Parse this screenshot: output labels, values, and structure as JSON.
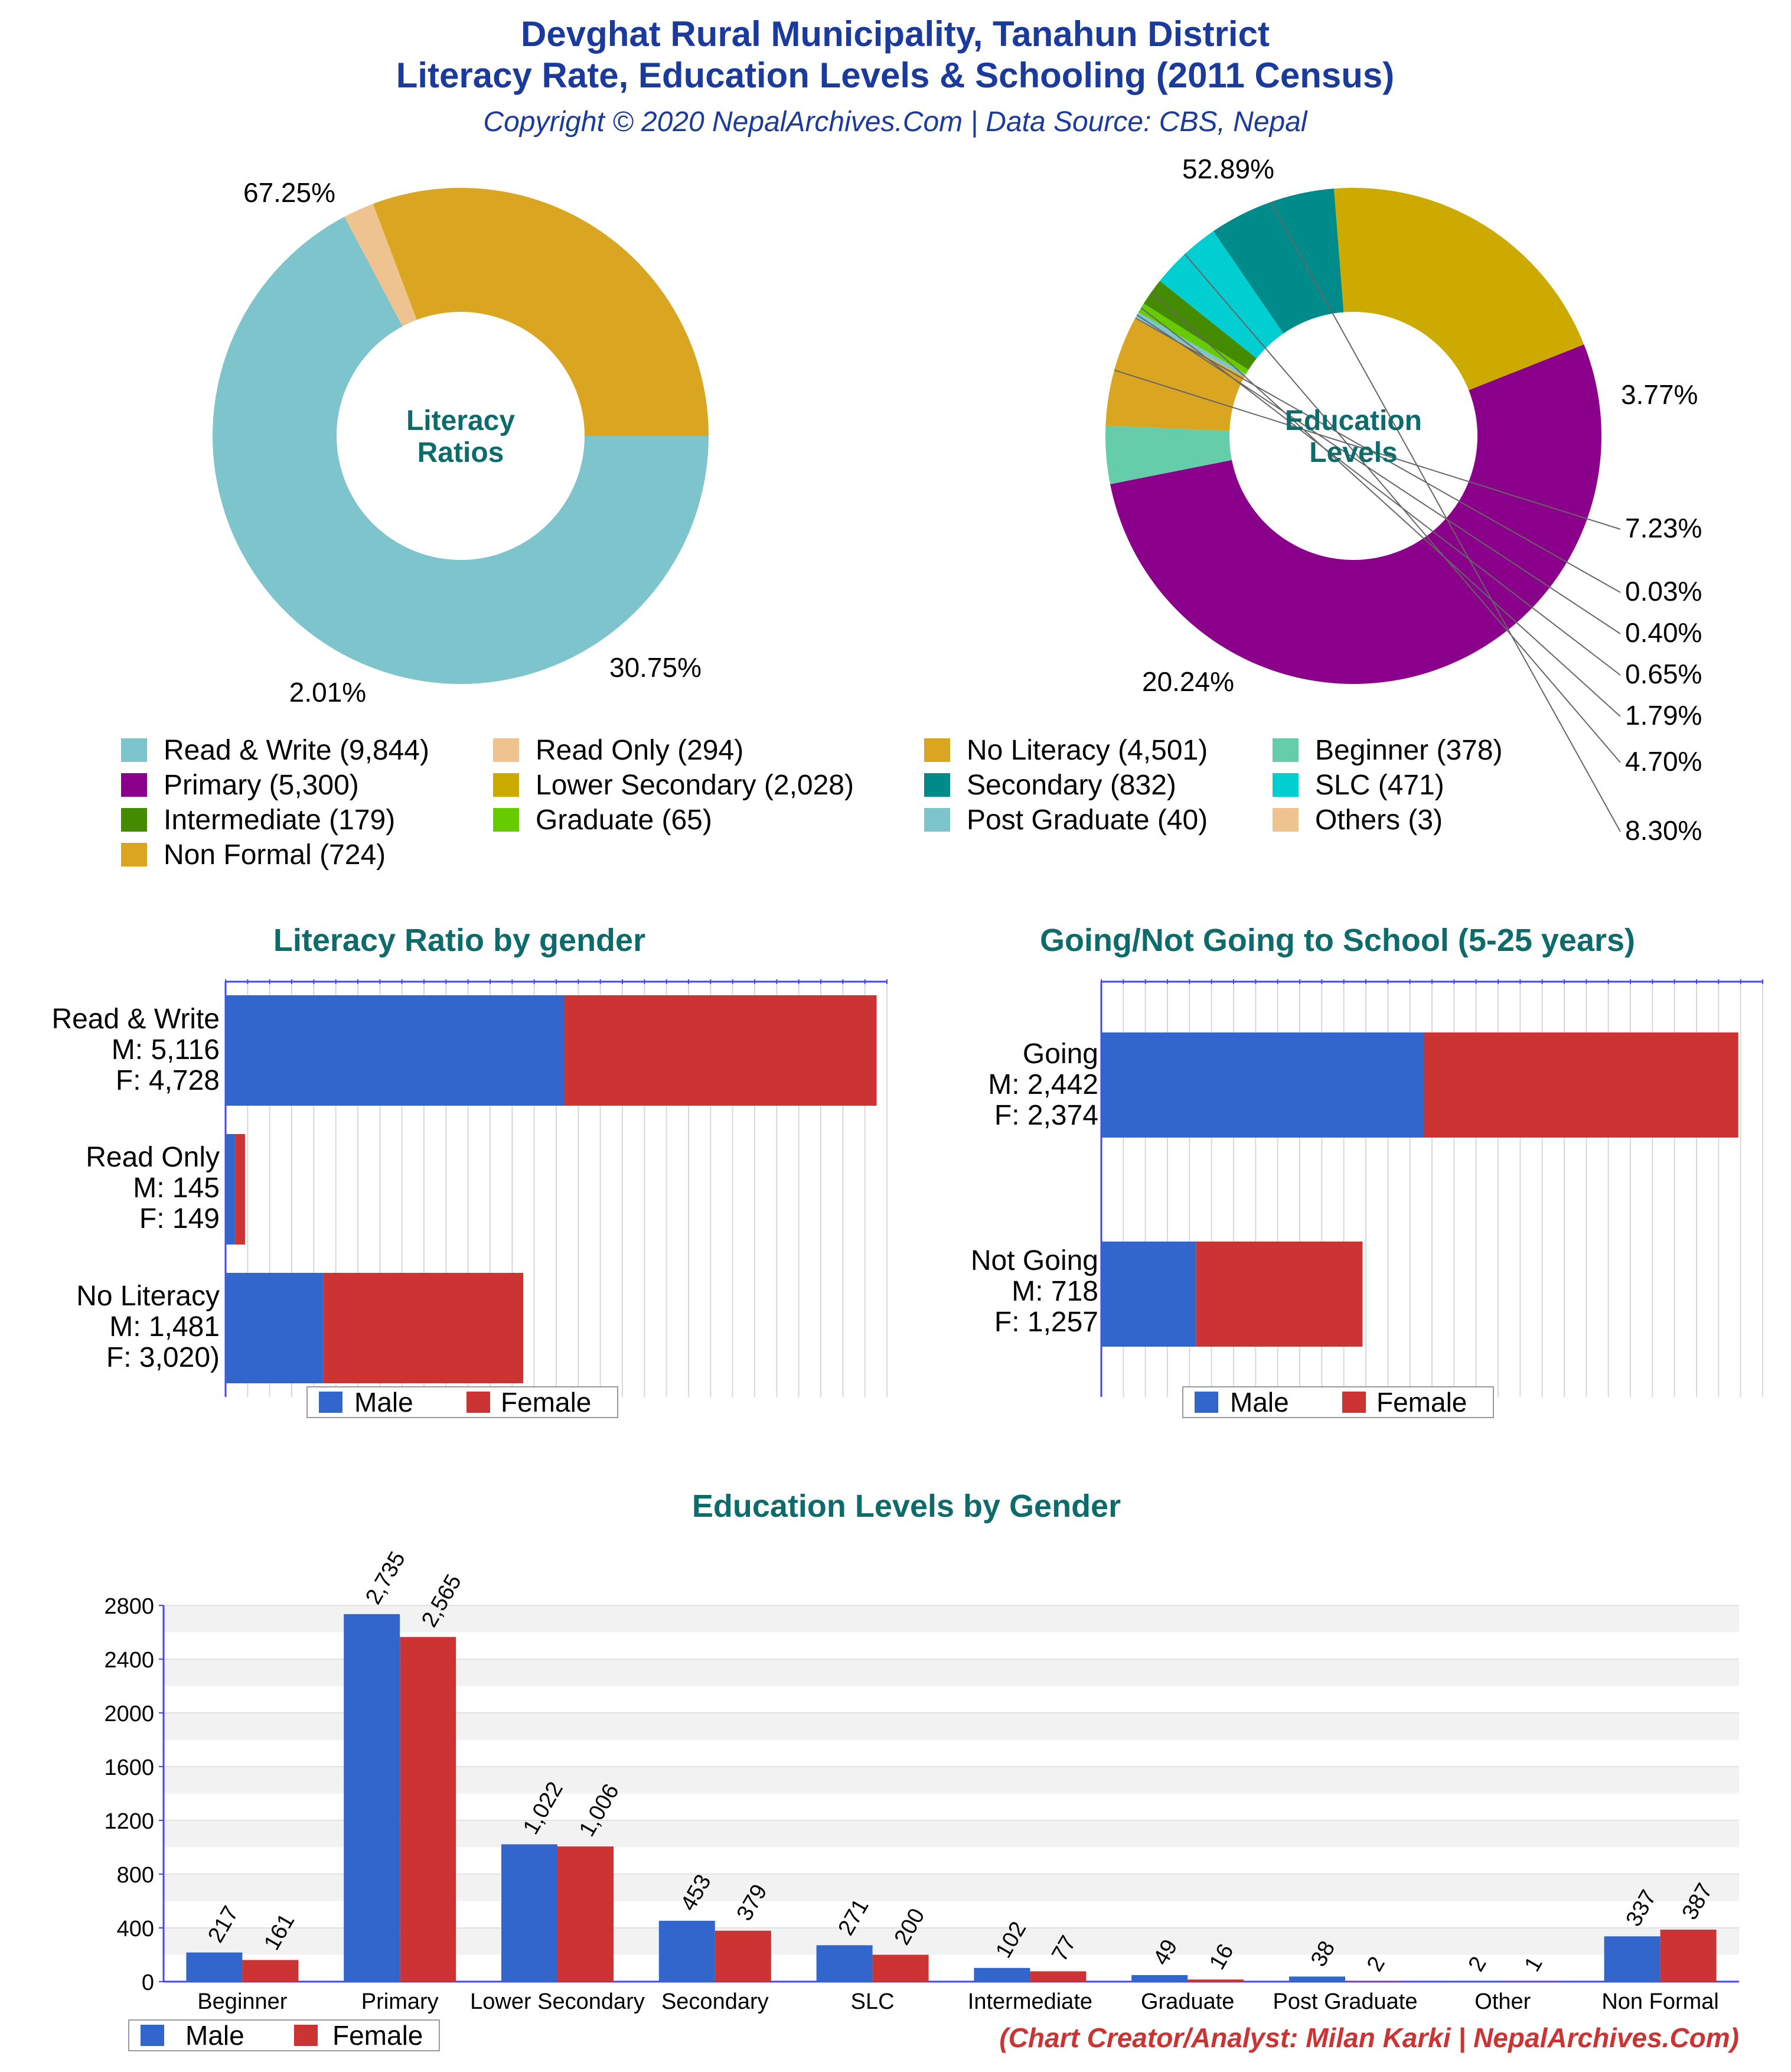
{
  "header": {
    "title_line1": "Devghat Rural Municipality, Tanahun District",
    "title_line2": "Literacy Rate, Education Levels & Schooling (2011 Census)",
    "subtitle": "Copyright © 2020 NepalArchives.Com | Data Source: CBS, Nepal"
  },
  "colors": {
    "title": "#1a3a9c",
    "section_title": "#0e6b6b",
    "male": "#3366cc",
    "female": "#cc3333",
    "footer": "#cc3333",
    "grid": "#cccccc",
    "axis": "#4444ff"
  },
  "chart_data": [
    {
      "type": "pie",
      "center_label": [
        "Literacy",
        "Ratios"
      ],
      "slices": [
        {
          "name": "Read & Write",
          "value": 9844,
          "pct_label": "67.25%",
          "color": "#7dc4cc"
        },
        {
          "name": "Read Only",
          "value": 294,
          "pct_label": "2.01%",
          "color": "#eec38f"
        },
        {
          "name": "No Literacy",
          "value": 4501,
          "pct_label": "30.75%",
          "color": "#daa520"
        }
      ]
    },
    {
      "type": "pie",
      "center_label": [
        "Education",
        "Levels"
      ],
      "slices": [
        {
          "name": "Primary",
          "value": 5300,
          "pct_label": "52.89%",
          "color": "#8b008b"
        },
        {
          "name": "Beginner",
          "value": 378,
          "pct_label": "3.77%",
          "color": "#66cdaa"
        },
        {
          "name": "Non Formal",
          "value": 724,
          "pct_label": "7.23%",
          "color": "#daa520"
        },
        {
          "name": "Others",
          "value": 3,
          "pct_label": "0.03%",
          "color": "#eec38f"
        },
        {
          "name": "Post Graduate",
          "value": 40,
          "pct_label": "0.40%",
          "color": "#7dc4cc"
        },
        {
          "name": "Graduate",
          "value": 65,
          "pct_label": "0.65%",
          "color": "#66cc00"
        },
        {
          "name": "Intermediate",
          "value": 179,
          "pct_label": "1.79%",
          "color": "#458b00"
        },
        {
          "name": "SLC",
          "value": 471,
          "pct_label": "4.70%",
          "color": "#00ced1"
        },
        {
          "name": "Secondary",
          "value": 832,
          "pct_label": "8.30%",
          "color": "#008b8b"
        },
        {
          "name": "Lower Secondary",
          "value": 2028,
          "pct_label": "20.24%",
          "color": "#ccaa00"
        }
      ]
    },
    {
      "type": "bar",
      "orientation": "horizontal",
      "stacked": true,
      "title": "Literacy Ratio by gender",
      "categories": [
        [
          "Read & Write",
          "M: 5,116",
          "F: 4,728"
        ],
        [
          "Read Only",
          "M: 145",
          "F: 149"
        ],
        [
          "No Literacy",
          "M: 1,481",
          "F: 3,020)"
        ]
      ],
      "series": [
        {
          "name": "Male",
          "values": [
            5116,
            145,
            1481
          ]
        },
        {
          "name": "Female",
          "values": [
            4728,
            149,
            3020
          ]
        }
      ],
      "xlim": [
        0,
        10000
      ],
      "legend": "bottom"
    },
    {
      "type": "bar",
      "orientation": "horizontal",
      "stacked": true,
      "title": "Going/Not Going to School (5-25 years)",
      "categories": [
        [
          "Going",
          "M: 2,442",
          "F: 2,374"
        ],
        [
          "Not Going",
          "M: 718",
          "F: 1,257"
        ]
      ],
      "series": [
        {
          "name": "Male",
          "values": [
            2442,
            718
          ]
        },
        {
          "name": "Female",
          "values": [
            2374,
            1257
          ]
        }
      ],
      "xlim": [
        0,
        5000
      ],
      "legend": "bottom"
    },
    {
      "type": "bar",
      "title": "Education Levels by Gender",
      "categories": [
        "Beginner",
        "Primary",
        "Lower Secondary",
        "Secondary",
        "SLC",
        "Intermediate",
        "Graduate",
        "Post Graduate",
        "Other",
        "Non Formal"
      ],
      "series": [
        {
          "name": "Male",
          "values": [
            217,
            2735,
            1022,
            453,
            271,
            102,
            49,
            38,
            2,
            337
          ],
          "labels": [
            "217",
            "2,735",
            "1,022",
            "453",
            "271",
            "102",
            "49",
            "38",
            "2",
            "337"
          ]
        },
        {
          "name": "Female",
          "values": [
            161,
            2565,
            1006,
            379,
            200,
            77,
            16,
            2,
            1,
            387
          ],
          "labels": [
            "161",
            "2,565",
            "1,006",
            "379",
            "200",
            "77",
            "16",
            "2",
            "1",
            "387"
          ]
        }
      ],
      "ylim": [
        0,
        2800
      ],
      "yticks": [
        "0",
        "400",
        "800",
        "1200",
        "1600",
        "2000",
        "2400",
        "2800"
      ],
      "legend": "bottom-left"
    }
  ],
  "legend_labels": [
    "Read & Write (9,844)",
    "Read Only (294)",
    "No Literacy (4,501)",
    "Beginner (378)",
    "Primary (5,300)",
    "Lower Secondary (2,028)",
    "Secondary (832)",
    "SLC (471)",
    "Intermediate (179)",
    "Graduate (65)",
    "Post Graduate (40)",
    "Others (3)",
    "Non Formal (724)"
  ],
  "legend_colors": [
    "#7dc4cc",
    "#eec38f",
    "#daa520",
    "#66cdaa",
    "#8b008b",
    "#ccaa00",
    "#008b8b",
    "#00ced1",
    "#458b00",
    "#66cc00",
    "#7dc4cc",
    "#eec38f",
    "#daa520"
  ],
  "gender_legend": {
    "male": "Male",
    "female": "Female"
  },
  "footer": "(Chart Creator/Analyst: Milan Karki | NepalArchives.Com)"
}
